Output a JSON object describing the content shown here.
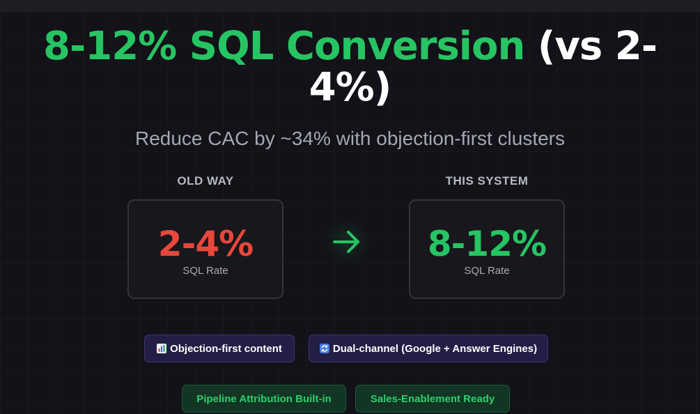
{
  "headline": {
    "highlight": "8-12% SQL Conversion",
    "rest_line1": "(vs 2-",
    "rest_line2": "4%)"
  },
  "subtitle": "Reduce CAC by ~34% with objection-first clusters",
  "comparison": {
    "old": {
      "label": "OLD WAY",
      "value": "2-4%",
      "caption": "SQL Rate",
      "color": "#e8473b"
    },
    "new": {
      "label": "THIS SYSTEM",
      "value": "8-12%",
      "caption": "SQL Rate",
      "color": "#27c463"
    },
    "arrow_icon": "arrow-right-icon"
  },
  "features": [
    {
      "icon": "bar-chart-icon",
      "label": "Objection-first content"
    },
    {
      "icon": "refresh-icon",
      "label": "Dual-channel (Google + Answer Engines)"
    }
  ],
  "badges": [
    {
      "label": "Pipeline Attribution Built-in"
    },
    {
      "label": "Sales-Enablement Ready"
    }
  ],
  "colors": {
    "background": "#121218",
    "accent_green": "#27c463",
    "accent_red": "#e8473b",
    "chip_purple_bg": "#221e45",
    "chip_green_bg": "#123524"
  }
}
